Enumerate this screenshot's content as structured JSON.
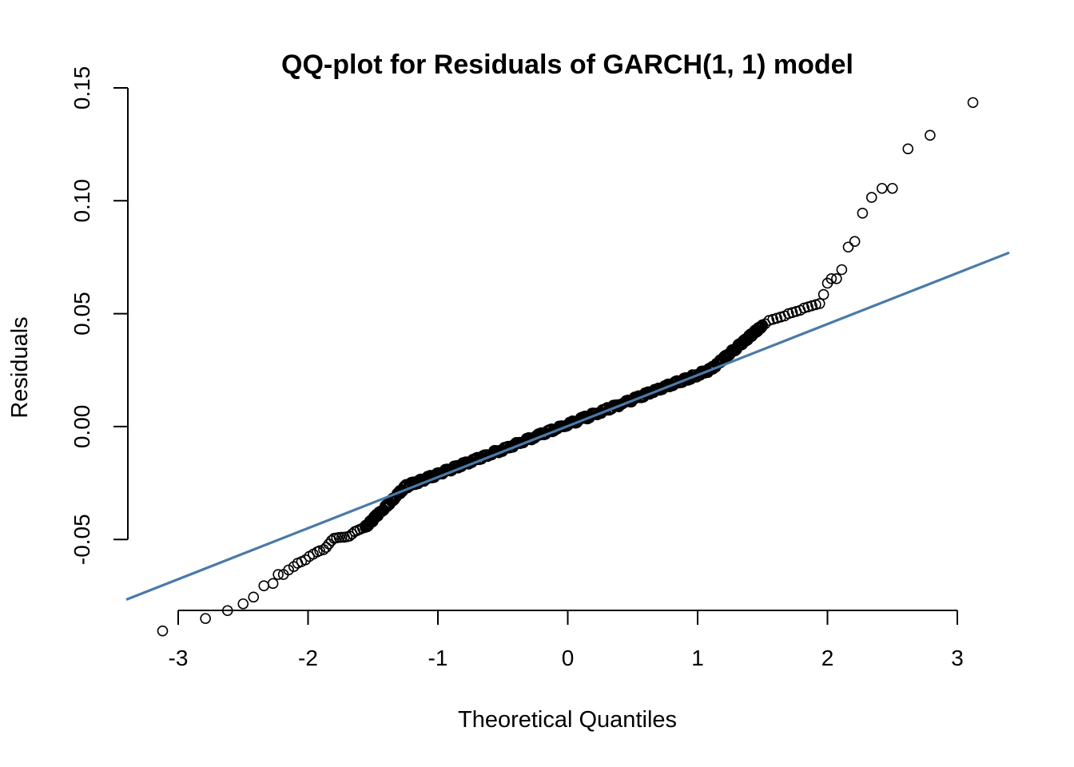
{
  "chart_data": {
    "type": "scatter",
    "title": "QQ-plot for Residuals of GARCH(1, 1) model",
    "xlabel": "Theoretical Quantiles",
    "ylabel": "Residuals",
    "xlim": [
      -3.4,
      3.4
    ],
    "ylim": [
      -0.08,
      0.15
    ],
    "xticks": [
      -3,
      -2,
      -1,
      0,
      1,
      2,
      3
    ],
    "xtick_labels": [
      "-3",
      "-2",
      "-1",
      "0",
      "1",
      "2",
      "3"
    ],
    "yticks": [
      -0.05,
      0.0,
      0.05,
      0.1,
      0.15
    ],
    "ytick_labels": [
      "-0.05",
      "0.00",
      "0.05",
      "0.10",
      "0.15"
    ],
    "grid": false,
    "series": [
      {
        "marker": "open-circle",
        "color": "#000000",
        "tails": [
          [
            -3.12,
            -0.0905
          ],
          [
            -2.79,
            -0.085
          ],
          [
            -2.62,
            -0.0815
          ],
          [
            -2.5,
            -0.0785
          ],
          [
            -2.42,
            -0.0755
          ],
          [
            -2.34,
            -0.0705
          ],
          [
            -2.27,
            -0.0695
          ],
          [
            -2.23,
            -0.0655
          ],
          [
            -2.19,
            -0.0655
          ],
          [
            -2.15,
            -0.0635
          ],
          [
            -2.11,
            -0.062
          ],
          [
            -2.08,
            -0.0605
          ],
          [
            -2.05,
            -0.0598
          ],
          [
            -2.02,
            -0.059
          ],
          [
            -1.99,
            -0.0575
          ],
          [
            -1.96,
            -0.0565
          ],
          [
            -1.93,
            -0.0555
          ],
          [
            -1.91,
            -0.055
          ],
          [
            -1.88,
            -0.0545
          ],
          [
            -1.86,
            -0.0535
          ],
          [
            -1.84,
            -0.052
          ],
          [
            -1.82,
            -0.0505
          ],
          [
            -1.8,
            -0.0495
          ],
          [
            -1.78,
            -0.0493
          ],
          [
            -1.76,
            -0.0491
          ],
          [
            -1.74,
            -0.049
          ],
          [
            -1.72,
            -0.049
          ],
          [
            -1.7,
            -0.0488
          ],
          [
            -1.68,
            -0.0485
          ],
          [
            -1.66,
            -0.0475
          ],
          [
            -1.64,
            -0.0465
          ],
          [
            -1.62,
            -0.046
          ],
          [
            -1.6,
            -0.0455
          ],
          [
            -1.58,
            -0.045
          ],
          [
            1.52,
            0.0455
          ],
          [
            1.55,
            0.047
          ],
          [
            1.58,
            0.0475
          ],
          [
            1.61,
            0.048
          ],
          [
            1.64,
            0.0485
          ],
          [
            1.67,
            0.049
          ],
          [
            1.7,
            0.05
          ],
          [
            1.73,
            0.0505
          ],
          [
            1.76,
            0.051
          ],
          [
            1.79,
            0.0515
          ],
          [
            1.82,
            0.0525
          ],
          [
            1.85,
            0.053
          ],
          [
            1.88,
            0.0535
          ],
          [
            1.91,
            0.054
          ],
          [
            1.94,
            0.0545
          ],
          [
            1.97,
            0.0585
          ],
          [
            2.0,
            0.0635
          ],
          [
            2.03,
            0.0655
          ],
          [
            2.07,
            0.0655
          ],
          [
            2.11,
            0.0695
          ],
          [
            2.16,
            0.0795
          ],
          [
            2.21,
            0.082
          ],
          [
            2.27,
            0.0945
          ],
          [
            2.34,
            0.1015
          ],
          [
            2.42,
            0.1055
          ],
          [
            2.5,
            0.1055
          ],
          [
            2.62,
            0.123
          ],
          [
            2.79,
            0.129
          ],
          [
            3.12,
            0.1435
          ]
        ],
        "body_range": [
          -1.56,
          1.5
        ]
      }
    ],
    "reference_line": {
      "color": "#4a7aa8",
      "intercept": 0.0002,
      "slope": 0.0226
    }
  }
}
